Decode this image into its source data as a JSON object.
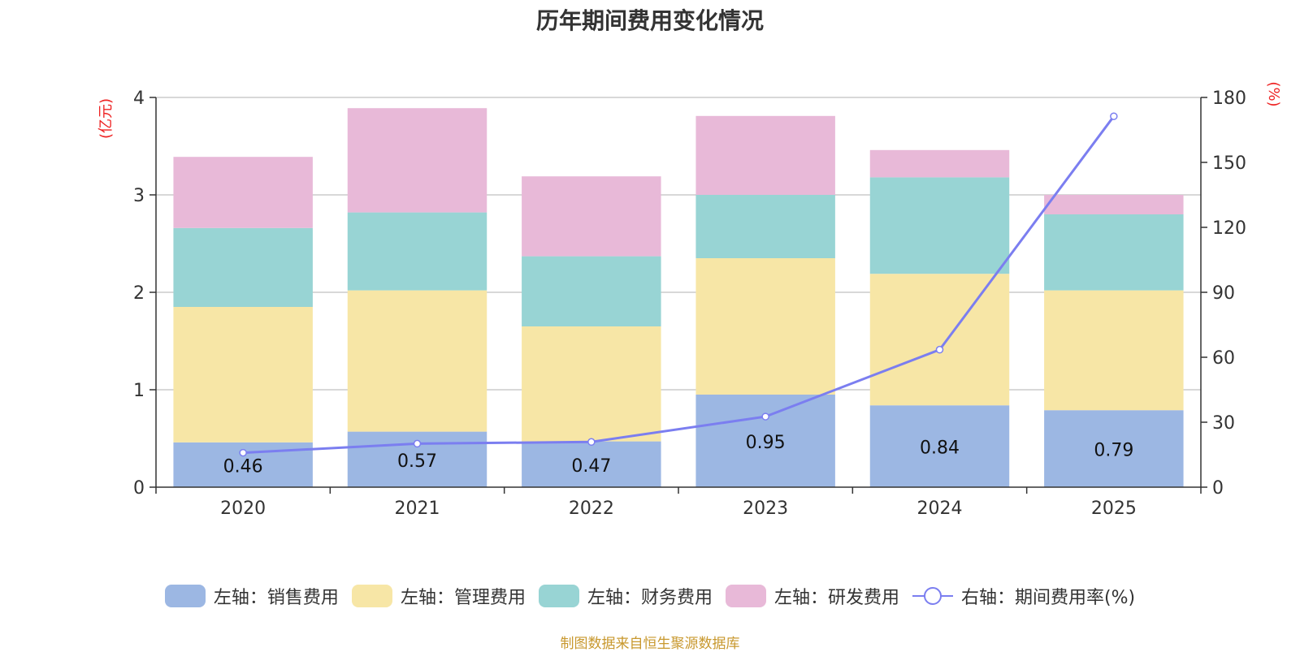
{
  "chart_data": {
    "type": "bar",
    "title": "历年期间费用变化情况",
    "categories": [
      "2020",
      "2021",
      "2022",
      "2023",
      "2024",
      "2025"
    ],
    "stacked": true,
    "series": [
      {
        "name": "左轴：销售费用",
        "axis": "left",
        "color": "#9cb7e3",
        "values": [
          0.46,
          0.57,
          0.47,
          0.95,
          0.84,
          0.79
        ]
      },
      {
        "name": "左轴：管理费用",
        "axis": "left",
        "color": "#f7e6a6",
        "values": [
          1.39,
          1.45,
          1.18,
          1.4,
          1.35,
          1.23
        ]
      },
      {
        "name": "左轴：财务费用",
        "axis": "left",
        "color": "#98d4d4",
        "values": [
          0.81,
          0.8,
          0.72,
          0.65,
          0.99,
          0.78
        ]
      },
      {
        "name": "左轴：研发费用",
        "axis": "left",
        "color": "#e8b9d8",
        "values": [
          0.73,
          1.07,
          0.82,
          0.81,
          0.28,
          0.2
        ]
      }
    ],
    "line_series": {
      "name": "右轴：期间费用率(%)",
      "axis": "right",
      "color": "#7b7ef0",
      "values": [
        15.9,
        20.1,
        20.9,
        32.6,
        63.5,
        171.3
      ]
    },
    "data_labels": [
      "0.46",
      "0.57",
      "0.47",
      "0.95",
      "0.84",
      "0.79"
    ],
    "left_axis": {
      "unit": "(亿元)",
      "ylim": [
        0,
        4
      ],
      "ticks": [
        "0",
        "1",
        "2",
        "3",
        "4"
      ]
    },
    "right_axis": {
      "unit": "(%)",
      "ylim": [
        0,
        180
      ],
      "ticks": [
        "0",
        "30",
        "60",
        "90",
        "120",
        "150",
        "180"
      ]
    },
    "legend_position": "bottom",
    "grid": true
  },
  "source_text": "制图数据来自恒生聚源数据库"
}
